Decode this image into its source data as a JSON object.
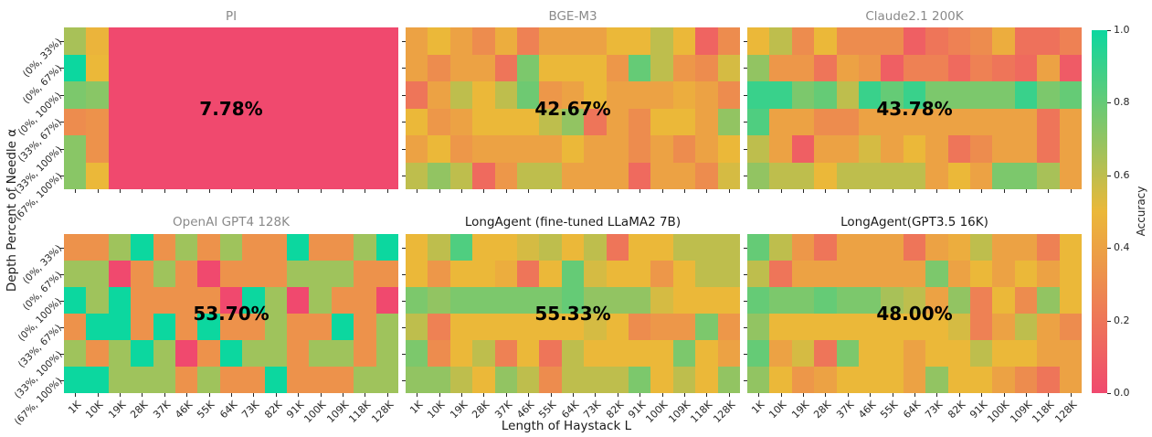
{
  "figure": {
    "y_axis_label": "Depth Percent of Needle α",
    "x_axis_label": "Length of Haystack L",
    "x_ticks": [
      "1K",
      "10K",
      "19K",
      "28K",
      "37K",
      "46K",
      "55K",
      "64K",
      "73K",
      "82K",
      "91K",
      "100K",
      "109K",
      "118K",
      "128K"
    ],
    "y_ticks": [
      "(0%, 33%)",
      "(0%, 67%)",
      "(0%, 100%)",
      "(33%, 67%)",
      "(33%, 100%)",
      "(67%, 100%)"
    ],
    "colorbar": {
      "label": "Accuracy",
      "ticks": [
        "0.0",
        "0.2",
        "0.4",
        "0.6",
        "0.8",
        "1.0"
      ]
    },
    "colors": {
      "cmap_low": "#F0496E",
      "cmap_mid": "#EBB839",
      "cmap_high": "#0CD79F",
      "title_gray": "#8a8a8a",
      "title_black": "#1a1a1a",
      "tick_color": "#262626"
    }
  },
  "chart_data": [
    {
      "type": "heatmap",
      "title": "PI",
      "title_style": "gray",
      "avg_label": "7.78%",
      "xlabel_ticks": "shared",
      "value_range": [
        0,
        1
      ],
      "values": [
        [
          0.65,
          0.48,
          0,
          0,
          0,
          0,
          0,
          0,
          0,
          0,
          0,
          0,
          0,
          0,
          0
        ],
        [
          1.0,
          0.5,
          0,
          0,
          0,
          0,
          0,
          0,
          0,
          0,
          0,
          0,
          0,
          0,
          0
        ],
        [
          0.75,
          0.72,
          0,
          0,
          0,
          0,
          0,
          0,
          0,
          0,
          0,
          0,
          0,
          0,
          0
        ],
        [
          0.3,
          0.33,
          0,
          0,
          0,
          0,
          0,
          0,
          0,
          0,
          0,
          0,
          0,
          0,
          0
        ],
        [
          0.72,
          0.33,
          0,
          0,
          0,
          0,
          0,
          0,
          0,
          0,
          0,
          0,
          0,
          0,
          0
        ],
        [
          0.72,
          0.5,
          0,
          0,
          0,
          0,
          0,
          0,
          0,
          0,
          0,
          0,
          0,
          0,
          0
        ]
      ]
    },
    {
      "type": "heatmap",
      "title": "BGE-M3",
      "title_style": "gray",
      "avg_label": "42.67%",
      "value_range": [
        0,
        1
      ],
      "values": [
        [
          0.4,
          0.5,
          0.4,
          0.3,
          0.45,
          0.25,
          0.4,
          0.4,
          0.4,
          0.5,
          0.5,
          0.6,
          0.5,
          0.12,
          0.3
        ],
        [
          0.4,
          0.3,
          0.4,
          0.4,
          0.2,
          0.75,
          0.5,
          0.5,
          0.5,
          0.35,
          0.8,
          0.6,
          0.35,
          0.3,
          0.55
        ],
        [
          0.2,
          0.4,
          0.6,
          0.5,
          0.6,
          0.78,
          0.35,
          0.4,
          0.5,
          0.4,
          0.4,
          0.4,
          0.45,
          0.4,
          0.3
        ],
        [
          0.5,
          0.35,
          0.4,
          0.5,
          0.5,
          0.5,
          0.6,
          0.7,
          0.2,
          0.4,
          0.3,
          0.5,
          0.5,
          0.4,
          0.7
        ],
        [
          0.4,
          0.5,
          0.35,
          0.4,
          0.4,
          0.4,
          0.4,
          0.5,
          0.4,
          0.4,
          0.3,
          0.4,
          0.3,
          0.4,
          0.5
        ],
        [
          0.6,
          0.7,
          0.6,
          0.15,
          0.35,
          0.6,
          0.6,
          0.4,
          0.4,
          0.4,
          0.15,
          0.4,
          0.4,
          0.3,
          0.55
        ]
      ]
    },
    {
      "type": "heatmap",
      "title": "Claude2.1 200K",
      "title_style": "gray",
      "avg_label": "43.78%",
      "value_range": [
        0,
        1
      ],
      "values": [
        [
          0.5,
          0.6,
          0.3,
          0.5,
          0.3,
          0.3,
          0.3,
          0.1,
          0.2,
          0.25,
          0.3,
          0.45,
          0.18,
          0.18,
          0.25
        ],
        [
          0.7,
          0.35,
          0.35,
          0.2,
          0.4,
          0.35,
          0.1,
          0.25,
          0.25,
          0.15,
          0.25,
          0.2,
          0.15,
          0.4,
          0.08
        ],
        [
          0.9,
          0.9,
          0.75,
          0.8,
          0.6,
          0.9,
          0.8,
          0.9,
          0.75,
          0.75,
          0.75,
          0.75,
          0.9,
          0.75,
          0.8
        ],
        [
          0.85,
          0.4,
          0.4,
          0.3,
          0.3,
          0.4,
          0.4,
          0.4,
          0.4,
          0.4,
          0.4,
          0.4,
          0.4,
          0.2,
          0.4
        ],
        [
          0.6,
          0.4,
          0.1,
          0.4,
          0.4,
          0.55,
          0.4,
          0.5,
          0.4,
          0.2,
          0.3,
          0.4,
          0.4,
          0.2,
          0.4
        ],
        [
          0.7,
          0.6,
          0.6,
          0.5,
          0.6,
          0.6,
          0.6,
          0.6,
          0.4,
          0.5,
          0.4,
          0.75,
          0.75,
          0.65,
          0.4
        ]
      ]
    },
    {
      "type": "heatmap",
      "title": "OpenAI GPT4 128K",
      "title_style": "gray",
      "avg_label": "53.70%",
      "value_range": [
        0,
        1
      ],
      "values": [
        [
          0.33,
          0.33,
          0.67,
          1.0,
          0.33,
          0.67,
          0.33,
          0.67,
          0.33,
          0.33,
          1.0,
          0.33,
          0.33,
          0.67,
          1.0
        ],
        [
          0.67,
          0.67,
          0.0,
          0.33,
          0.67,
          0.33,
          0.0,
          0.33,
          0.33,
          0.33,
          0.67,
          0.67,
          0.67,
          0.33,
          0.33
        ],
        [
          1.0,
          0.67,
          1.0,
          0.33,
          0.33,
          0.33,
          0.33,
          0.0,
          1.0,
          0.67,
          0.0,
          0.67,
          0.33,
          0.33,
          0.0
        ],
        [
          0.33,
          1.0,
          1.0,
          0.33,
          1.0,
          0.33,
          1.0,
          0.33,
          0.33,
          0.67,
          0.33,
          0.33,
          1.0,
          0.33,
          0.67
        ],
        [
          0.67,
          0.33,
          0.67,
          1.0,
          0.67,
          0.0,
          0.33,
          1.0,
          0.67,
          0.67,
          0.33,
          0.67,
          0.67,
          0.33,
          0.67
        ],
        [
          1.0,
          1.0,
          0.67,
          0.67,
          0.67,
          0.33,
          0.67,
          0.33,
          0.33,
          1.0,
          0.33,
          0.33,
          0.33,
          0.67,
          0.67
        ]
      ]
    },
    {
      "type": "heatmap",
      "title": "LongAgent (fine-tuned LLaMA2 7B)",
      "title_style": "black",
      "avg_label": "55.33%",
      "value_range": [
        0,
        1
      ],
      "values": [
        [
          0.5,
          0.6,
          0.85,
          0.5,
          0.5,
          0.55,
          0.6,
          0.5,
          0.6,
          0.2,
          0.5,
          0.5,
          0.6,
          0.6,
          0.6
        ],
        [
          0.5,
          0.35,
          0.5,
          0.5,
          0.45,
          0.2,
          0.5,
          0.8,
          0.55,
          0.5,
          0.5,
          0.35,
          0.5,
          0.6,
          0.6
        ],
        [
          0.75,
          0.7,
          0.75,
          0.75,
          0.75,
          0.75,
          0.75,
          0.8,
          0.7,
          0.7,
          0.7,
          0.55,
          0.5,
          0.5,
          0.5
        ],
        [
          0.6,
          0.25,
          0.5,
          0.5,
          0.5,
          0.5,
          0.5,
          0.5,
          0.55,
          0.5,
          0.3,
          0.35,
          0.35,
          0.75,
          0.35
        ],
        [
          0.75,
          0.3,
          0.5,
          0.6,
          0.25,
          0.5,
          0.2,
          0.6,
          0.5,
          0.5,
          0.5,
          0.5,
          0.75,
          0.5,
          0.4
        ],
        [
          0.7,
          0.7,
          0.6,
          0.5,
          0.7,
          0.6,
          0.3,
          0.6,
          0.6,
          0.6,
          0.75,
          0.5,
          0.6,
          0.5,
          0.7
        ]
      ]
    },
    {
      "type": "heatmap",
      "title": "LongAgent(GPT3.5 16K)",
      "title_style": "black",
      "avg_label": "48.00%",
      "value_range": [
        0,
        1
      ],
      "values": [
        [
          0.8,
          0.6,
          0.35,
          0.2,
          0.4,
          0.4,
          0.4,
          0.2,
          0.4,
          0.45,
          0.6,
          0.4,
          0.4,
          0.25,
          0.5
        ],
        [
          0.6,
          0.2,
          0.4,
          0.4,
          0.4,
          0.4,
          0.4,
          0.4,
          0.75,
          0.4,
          0.5,
          0.4,
          0.5,
          0.4,
          0.5
        ],
        [
          0.8,
          0.75,
          0.75,
          0.8,
          0.75,
          0.75,
          0.65,
          0.6,
          0.4,
          0.7,
          0.25,
          0.5,
          0.3,
          0.7,
          0.5
        ],
        [
          0.7,
          0.5,
          0.5,
          0.5,
          0.5,
          0.5,
          0.5,
          0.5,
          0.5,
          0.55,
          0.25,
          0.4,
          0.6,
          0.4,
          0.3
        ],
        [
          0.8,
          0.4,
          0.55,
          0.2,
          0.75,
          0.5,
          0.5,
          0.4,
          0.5,
          0.5,
          0.6,
          0.5,
          0.5,
          0.4,
          0.4
        ],
        [
          0.7,
          0.5,
          0.35,
          0.4,
          0.5,
          0.5,
          0.5,
          0.4,
          0.7,
          0.5,
          0.5,
          0.4,
          0.3,
          0.2,
          0.4
        ]
      ]
    }
  ]
}
